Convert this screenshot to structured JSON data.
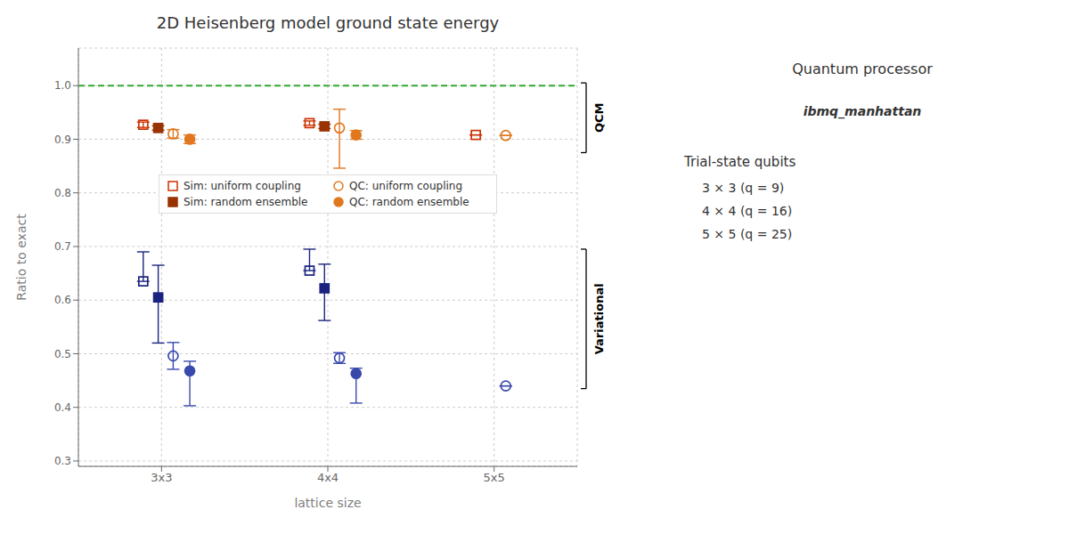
{
  "chart_data": {
    "type": "scatter",
    "title": "2D Heisenberg model ground state energy",
    "xlabel": "lattice size",
    "ylabel": "Ratio to exact",
    "categories": [
      "3x3",
      "4x4",
      "5x5"
    ],
    "ylim": [
      0.29,
      1.07
    ],
    "yticks": [
      0.3,
      0.4,
      0.5,
      0.6,
      0.7,
      0.8,
      0.9,
      {
        "value": 1.0,
        "label": "1.0"
      }
    ],
    "grid": true,
    "legend": "center",
    "series": [
      {
        "name": "Sim: uniform coupling",
        "color": "#cc3300",
        "marker": "square-open",
        "values": [
          0.927,
          0.93,
          0.908
        ],
        "error_low": [
          0.005,
          0.004,
          0.0
        ],
        "error_high": [
          0.005,
          0.004,
          0.0
        ]
      },
      {
        "name": "Sim: random ensemble",
        "color": "#993300",
        "marker": "square",
        "values": [
          0.921,
          0.924,
          null
        ],
        "error_low": [
          0.004,
          0.004,
          null
        ],
        "error_high": [
          0.004,
          0.004,
          null
        ]
      },
      {
        "name": "QC: uniform coupling",
        "color": "#e07820",
        "marker": "circle-open",
        "values": [
          0.91,
          0.921,
          0.907
        ],
        "error_low": [
          0.008,
          0.075,
          0.0
        ],
        "error_high": [
          0.008,
          0.035,
          0.0
        ]
      },
      {
        "name": "QC: random ensemble",
        "color": "#e07820",
        "marker": "circle",
        "values": [
          0.9,
          0.908,
          null
        ],
        "error_low": [
          0.008,
          0.008,
          null
        ],
        "error_high": [
          0.008,
          0.008,
          null
        ]
      },
      {
        "name": "Sim: uniform coupling",
        "color": "#1a237e",
        "marker": "square-open",
        "values": [
          0.635,
          0.655,
          null
        ],
        "error_low": [
          0.0,
          0.0,
          null
        ],
        "error_high": [
          0.055,
          0.04,
          null
        ]
      },
      {
        "name": "Sim: random ensemble",
        "color": "#1a237e",
        "marker": "square",
        "values": [
          0.605,
          0.622,
          null
        ],
        "error_low": [
          0.085,
          0.06,
          null
        ],
        "error_high": [
          0.06,
          0.045,
          null
        ]
      },
      {
        "name": "QC: uniform coupling",
        "color": "#3949ab",
        "marker": "circle-open",
        "values": [
          0.496,
          0.492,
          0.44
        ],
        "error_low": [
          0.025,
          0.01,
          0.0
        ],
        "error_high": [
          0.025,
          0.01,
          0.0
        ]
      },
      {
        "name": "QC: random ensemble",
        "color": "#3949ab",
        "marker": "circle",
        "values": [
          0.468,
          0.463,
          null
        ],
        "error_low": [
          0.065,
          0.055,
          null
        ],
        "error_high": [
          0.018,
          0.01,
          null
        ]
      }
    ],
    "reference_line": {
      "value": 1.0,
      "color": "#33aa33",
      "line_style": "dashed"
    },
    "brackets": [
      {
        "label": "QCM",
        "from": 0.875,
        "to": 1.005
      },
      {
        "label": "Variational",
        "from": 0.435,
        "to": 0.695
      }
    ],
    "annotations": [
      "Quantum processor",
      "ibmq_manhattan",
      "Trial-state qubits",
      "3 × 3 (q = 9)",
      "4 × 4 (q = 16)",
      "5 × 5 (q = 25)"
    ]
  }
}
